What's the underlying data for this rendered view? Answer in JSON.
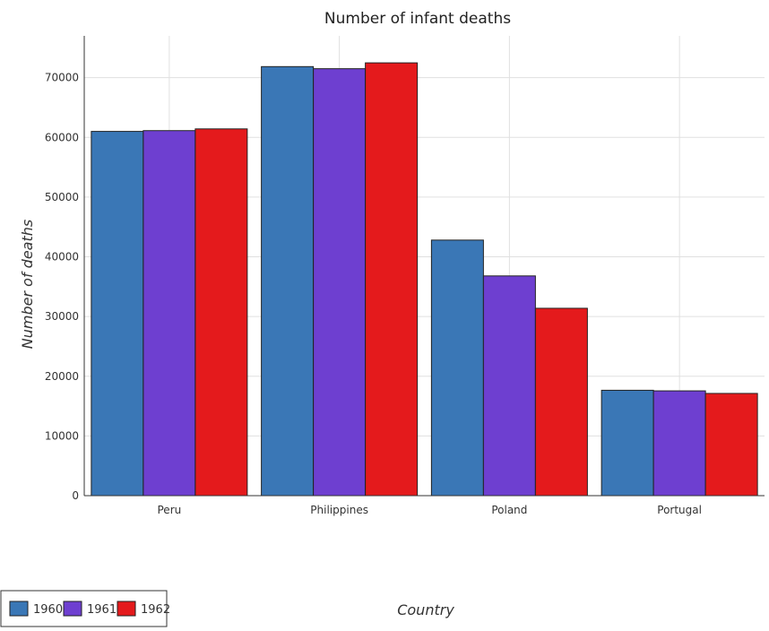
{
  "chart_data": {
    "type": "bar",
    "title": "Number of infant deaths",
    "xlabel": "Country",
    "ylabel": "Number of deaths",
    "categories": [
      "Peru",
      "Philippines",
      "Poland",
      "Portugal"
    ],
    "series": [
      {
        "name": "1960",
        "color": "#3a77b6",
        "values": [
          61000,
          71850,
          42800,
          17650
        ]
      },
      {
        "name": "1961",
        "color": "#6e3fd0",
        "values": [
          61130,
          71500,
          36800,
          17550
        ]
      },
      {
        "name": "1962",
        "color": "#e41a1c",
        "values": [
          61420,
          72480,
          31380,
          17120
        ]
      }
    ],
    "ylim": [
      0,
      77000
    ],
    "yticks": [
      0,
      10000,
      20000,
      30000,
      40000,
      50000,
      60000,
      70000
    ],
    "ytick_labels": [
      "0",
      "10000",
      "20000",
      "30000",
      "40000",
      "50000",
      "60000",
      "70000"
    ],
    "grid": true,
    "legend_position": "bottom-left"
  }
}
